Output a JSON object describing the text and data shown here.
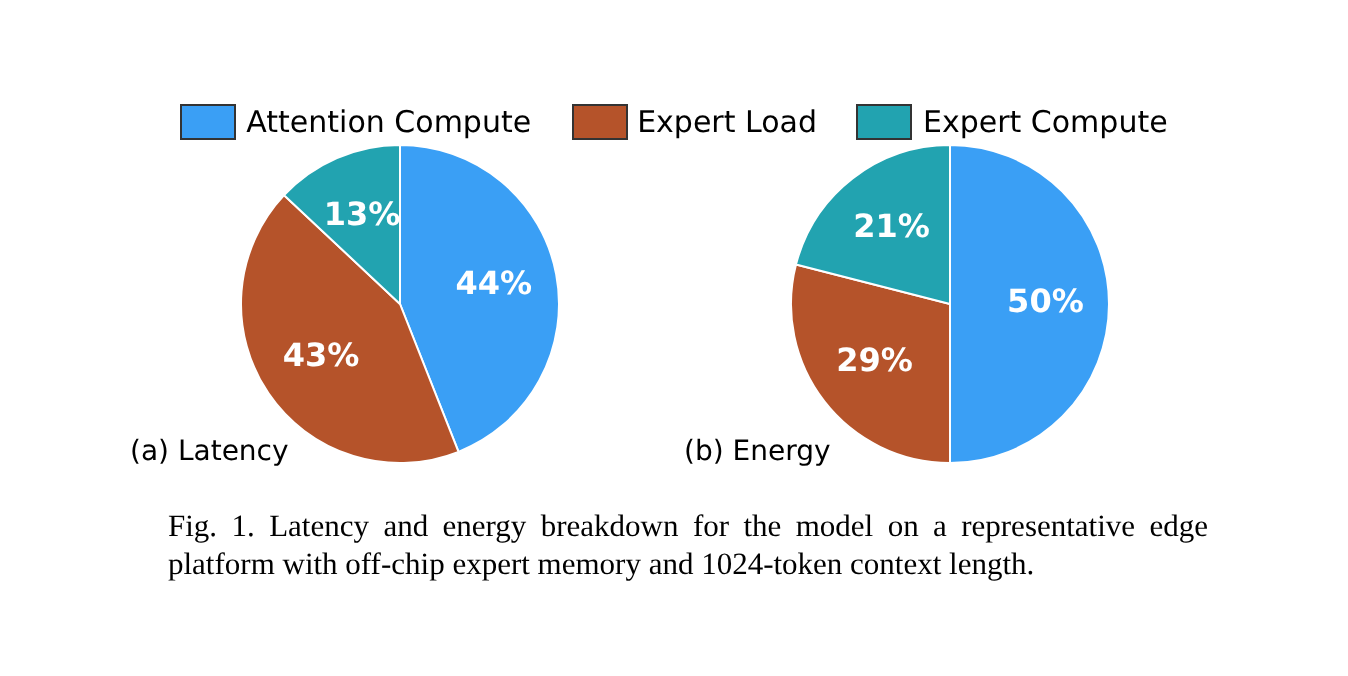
{
  "chart_data": [
    {
      "type": "pie",
      "title": "(a) Latency",
      "categories": [
        "Attention Compute",
        "Expert Load",
        "Expert Compute"
      ],
      "values": [
        44,
        43,
        13
      ],
      "colors": [
        "#3a9ff5",
        "#b5532a",
        "#22a3b0"
      ],
      "value_labels": [
        "44%",
        "43%",
        "13%"
      ],
      "legend": "top",
      "annotations": [
        "Fig. 1.  Latency and energy breakdown for the model on a representative edge platform with off-chip expert memory and 1024-token context length."
      ]
    },
    {
      "type": "pie",
      "title": "(b) Energy",
      "categories": [
        null,
        null,
        null
      ],
      "values": [
        50,
        29,
        21
      ],
      "colors": [
        "#3a9ff5",
        "#b5532a",
        "#22a3b0"
      ],
      "value_labels": [
        "50%",
        "29%",
        "21%"
      ]
    }
  ]
}
